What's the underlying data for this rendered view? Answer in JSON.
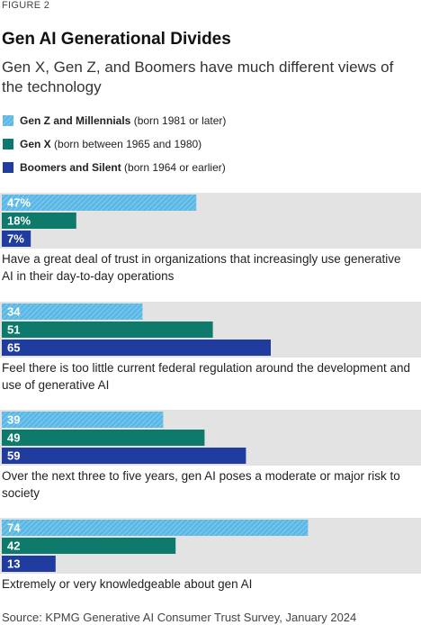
{
  "figure_label": "FIGURE 2",
  "chart_data": {
    "type": "bar",
    "orientation": "horizontal",
    "title": "Gen AI Generational Divides",
    "subtitle": "Gen X, Gen Z, and Boomers have much different views of the technology",
    "categories": [
      "Have a great deal of trust in organizations that increasingly use generative AI in their day-to-day operations",
      "Feel there is too little current federal regulation around the development and use of generative AI",
      "Over the next three to five years, gen AI poses a moderate or major risk to society",
      "Extremely or very knowledgeable about gen AI"
    ],
    "series": [
      {
        "name": "Gen Z and Millennials",
        "born": "(born 1981 or later)",
        "color": "#5ab8e6",
        "hatched": true,
        "values": [
          47,
          34,
          39,
          74
        ],
        "value_labels": [
          "47%",
          "34",
          "39",
          "74"
        ]
      },
      {
        "name": "Gen X",
        "born": "(born between 1965 and 1980)",
        "color": "#0e7a6c",
        "hatched": false,
        "values": [
          18,
          51,
          49,
          42
        ],
        "value_labels": [
          "18%",
          "51",
          "49",
          "42"
        ]
      },
      {
        "name": "Boomers and Silent",
        "born": "(born 1964 or earlier)",
        "color": "#1f3c9e",
        "hatched": false,
        "values": [
          7,
          65,
          59,
          13
        ],
        "value_labels": [
          "7%",
          "65",
          "59",
          "13"
        ]
      }
    ],
    "xlim": [
      0,
      100
    ],
    "band_color": "#e3e3e3",
    "source": "Source: KPMG Generative AI Consumer Trust Survey, January 2024"
  }
}
